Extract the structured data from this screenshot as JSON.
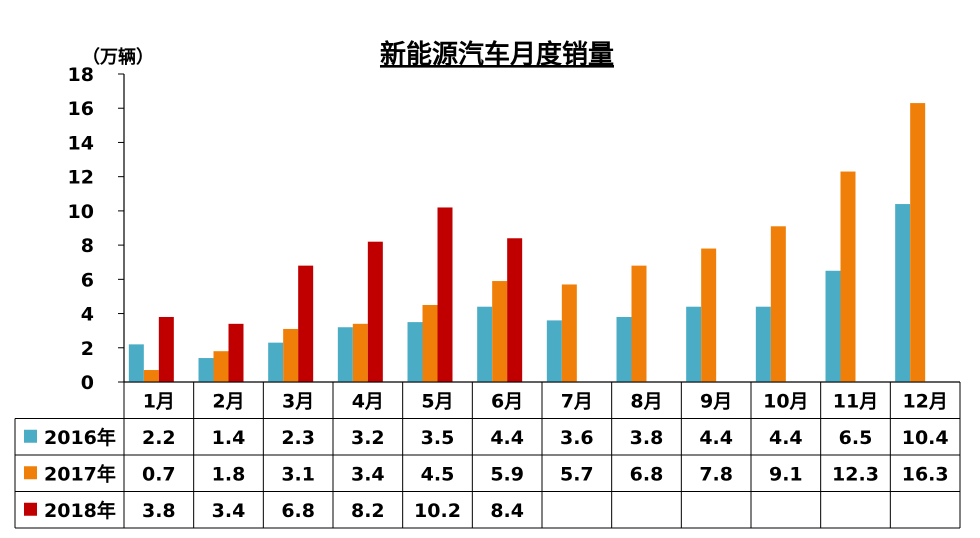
{
  "chart_data": {
    "type": "bar",
    "title": "新能源汽车月度销量",
    "unit_label": "（万辆）",
    "ylim": [
      0,
      18
    ],
    "yticks": [
      0,
      2,
      4,
      6,
      8,
      10,
      12,
      14,
      16,
      18
    ],
    "categories": [
      "1月",
      "2月",
      "3月",
      "4月",
      "5月",
      "6月",
      "7月",
      "8月",
      "9月",
      "10月",
      "11月",
      "12月"
    ],
    "series": [
      {
        "name": "2016年",
        "color": "#4bacc6",
        "values": [
          2.2,
          1.4,
          2.3,
          3.2,
          3.5,
          4.4,
          3.6,
          3.8,
          4.4,
          4.4,
          6.5,
          10.4
        ],
        "labels": [
          "2.2",
          "1.4",
          "2.3",
          "3.2",
          "3.5",
          "4.4",
          "3.6",
          "3.8",
          "4.4",
          "4.4",
          "6.5",
          "10.4"
        ]
      },
      {
        "name": "2017年",
        "color": "#f07f09",
        "values": [
          0.7,
          1.8,
          3.1,
          3.4,
          4.5,
          5.9,
          5.7,
          6.8,
          7.8,
          9.1,
          12.3,
          16.3
        ],
        "labels": [
          "0.7",
          "1.8",
          "3.1",
          "3.4",
          "4.5",
          "5.9",
          "5.7",
          "6.8",
          "7.8",
          "9.1",
          "12.3",
          "16.3"
        ]
      },
      {
        "name": "2018年",
        "color": "#c00000",
        "values": [
          3.8,
          3.4,
          6.8,
          8.2,
          10.2,
          8.4,
          null,
          null,
          null,
          null,
          null,
          null
        ],
        "labels": [
          "3.8",
          "3.4",
          "6.8",
          "8.2",
          "10.2",
          "8.4",
          "",
          "",
          "",
          "",
          "",
          ""
        ]
      }
    ],
    "grid": false,
    "legend": "data-table"
  }
}
